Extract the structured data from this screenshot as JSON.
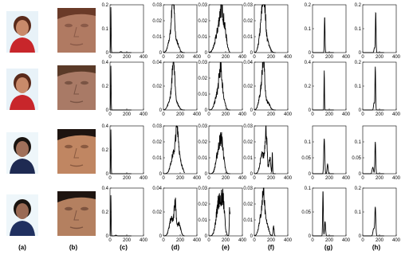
{
  "column_labels": [
    "(a)",
    "(b)",
    "(c)",
    "(d)",
    "(e)",
    "(f)",
    "(g)",
    "(h)"
  ],
  "colors": {
    "line": "#000000",
    "axis": "#000000",
    "background": "#ffffff"
  },
  "rows": [
    {
      "photo": {
        "skin": "#c98a6a",
        "hair": "#5a2a1a",
        "shirt": "#c8262b",
        "bg": "#e8f2f8"
      },
      "crop": {
        "skin": "#b07a62",
        "hair": "#6a3a28",
        "shadow": "#8a5a48"
      }
    },
    {
      "photo": {
        "skin": "#c98a6a",
        "hair": "#5a2a1a",
        "shirt": "#c8262b",
        "bg": "#e8f2f8"
      },
      "crop": {
        "skin": "#a97a66",
        "hair": "#5a3a28",
        "shadow": "#7a5444"
      }
    },
    {
      "photo": {
        "skin": "#a0705a",
        "hair": "#1a1410",
        "shirt": "#1e2a52",
        "bg": "#eef6fa"
      },
      "crop": {
        "skin": "#c08662",
        "hair": "#1e1410",
        "shadow": "#8a5a40"
      }
    },
    {
      "photo": {
        "skin": "#9a6a54",
        "hair": "#1a1410",
        "shirt": "#203060",
        "bg": "#eef6fa"
      },
      "crop": {
        "skin": "#b48060",
        "hair": "#1e1410",
        "shadow": "#7e5440"
      }
    }
  ],
  "chart_data": {
    "type": "line",
    "layout": "grid of histograms, 4 rows x 6 columns (c)-(h)",
    "xlim": [
      0,
      400
    ],
    "xticks": [
      0,
      200,
      400
    ],
    "grid": false,
    "charts": [
      {
        "row": 0,
        "col": "(c)",
        "ylim": [
          0,
          0.2
        ],
        "yticks": [
          0,
          0.1,
          0.2
        ],
        "yticklabels": [
          "0",
          "0.1",
          "0.2"
        ],
        "peaks": [
          [
            10,
            0.19,
            3
          ],
          [
            130,
            0.004,
            10
          ]
        ],
        "noise": 0
      },
      {
        "row": 0,
        "col": "(d)",
        "ylim": [
          0,
          0.03
        ],
        "yticks": [
          0,
          0.01,
          0.02,
          0.03
        ],
        "yticklabels": [
          "0",
          "0.01",
          "0.02",
          "0.03"
        ],
        "peaks": [
          [
            115,
            0.028,
            14
          ],
          [
            95,
            0.012,
            30
          ],
          [
            160,
            0.006,
            25
          ]
        ],
        "noise": 0.35
      },
      {
        "row": 0,
        "col": "(e)",
        "ylim": [
          0,
          0.03
        ],
        "yticks": [
          0,
          0.01,
          0.02,
          0.03
        ],
        "yticklabels": [
          "0",
          "0.01",
          "0.02",
          "0.03"
        ],
        "peaks": [
          [
            155,
            0.022,
            25
          ],
          [
            110,
            0.012,
            35
          ],
          [
            200,
            0.008,
            20
          ]
        ],
        "noise": 0.45
      },
      {
        "row": 0,
        "col": "(f)",
        "ylim": [
          0,
          0.03
        ],
        "yticks": [
          0,
          0.01,
          0.02,
          0.03
        ],
        "yticklabels": [
          "0",
          "0.01",
          "0.02",
          "0.03"
        ],
        "peaks": [
          [
            115,
            0.029,
            18
          ],
          [
            85,
            0.016,
            25
          ],
          [
            160,
            0.006,
            25
          ]
        ],
        "noise": 0.4
      },
      {
        "row": 0,
        "col": "(g)",
        "ylim": [
          0,
          0.2
        ],
        "yticks": [
          0,
          0.1,
          0.2
        ],
        "yticklabels": [
          "0",
          "0.1",
          "0.2"
        ],
        "peaks": [
          [
            145,
            0.15,
            4
          ]
        ],
        "noise": 0
      },
      {
        "row": 0,
        "col": "(h)",
        "ylim": [
          0,
          0.2
        ],
        "yticks": [
          0,
          0.1,
          0.2
        ],
        "yticklabels": [
          "0",
          "0.1",
          "0.2"
        ],
        "peaks": [
          [
            155,
            0.17,
            4
          ],
          [
            140,
            0.02,
            6
          ]
        ],
        "noise": 0
      },
      {
        "row": 1,
        "col": "(c)",
        "ylim": [
          0,
          0.4
        ],
        "yticks": [
          0,
          0.2,
          0.4
        ],
        "yticklabels": [
          "0",
          "0.2",
          "0.4"
        ],
        "peaks": [
          [
            10,
            0.37,
            3
          ]
        ],
        "noise": 0
      },
      {
        "row": 1,
        "col": "(d)",
        "ylim": [
          0,
          0.04
        ],
        "yticks": [
          0,
          0.02,
          0.04
        ],
        "yticklabels": [
          "0",
          "0.02",
          "0.04"
        ],
        "peaks": [
          [
            120,
            0.034,
            14
          ],
          [
            95,
            0.012,
            30
          ],
          [
            160,
            0.005,
            25
          ]
        ],
        "noise": 0.35
      },
      {
        "row": 1,
        "col": "(e)",
        "ylim": [
          0,
          0.03
        ],
        "yticks": [
          0,
          0.01,
          0.02,
          0.03
        ],
        "yticklabels": [
          "0",
          "0.01",
          "0.02",
          "0.03"
        ],
        "peaks": [
          [
            140,
            0.02,
            18
          ],
          [
            105,
            0.01,
            30
          ],
          [
            175,
            0.006,
            20
          ]
        ],
        "noise": 0.45
      },
      {
        "row": 1,
        "col": "(f)",
        "ylim": [
          0,
          0.04
        ],
        "yticks": [
          0,
          0.02,
          0.04
        ],
        "yticklabels": [
          "0",
          "0.02",
          "0.04"
        ],
        "peaks": [
          [
            110,
            0.036,
            16
          ],
          [
            80,
            0.014,
            25
          ],
          [
            160,
            0.006,
            25
          ]
        ],
        "noise": 0.4
      },
      {
        "row": 1,
        "col": "(g)",
        "ylim": [
          0,
          0.4
        ],
        "yticks": [
          0,
          0.2,
          0.4
        ],
        "yticklabels": [
          "0",
          "0.2",
          "0.4"
        ],
        "peaks": [
          [
            140,
            0.33,
            3
          ]
        ],
        "noise": 0
      },
      {
        "row": 1,
        "col": "(h)",
        "ylim": [
          0,
          0.2
        ],
        "yticks": [
          0,
          0.1,
          0.2
        ],
        "yticklabels": [
          "0",
          "0.1",
          "0.2"
        ],
        "peaks": [
          [
            150,
            0.18,
            4
          ],
          [
            135,
            0.03,
            6
          ]
        ],
        "noise": 0
      },
      {
        "row": 2,
        "col": "(c)",
        "ylim": [
          0,
          0.4
        ],
        "yticks": [
          0,
          0.2,
          0.4
        ],
        "yticklabels": [
          "0",
          "0.2",
          "0.4"
        ],
        "peaks": [
          [
            10,
            0.37,
            3
          ]
        ],
        "noise": 0
      },
      {
        "row": 2,
        "col": "(d)",
        "ylim": [
          0,
          0.03
        ],
        "yticks": [
          0,
          0.01,
          0.02,
          0.03
        ],
        "yticklabels": [
          "0",
          "0.01",
          "0.02",
          "0.03"
        ],
        "peaks": [
          [
            165,
            0.026,
            18
          ],
          [
            120,
            0.012,
            30
          ],
          [
            210,
            0.006,
            20
          ]
        ],
        "noise": 0.35
      },
      {
        "row": 2,
        "col": "(e)",
        "ylim": [
          0,
          0.03
        ],
        "yticks": [
          0,
          0.01,
          0.02,
          0.03
        ],
        "yticklabels": [
          "0",
          "0.01",
          "0.02",
          "0.03"
        ],
        "peaks": [
          [
            150,
            0.02,
            25
          ],
          [
            105,
            0.01,
            25
          ],
          [
            285,
            0.022,
            2
          ]
        ],
        "noise": 0.45
      },
      {
        "row": 2,
        "col": "(f)",
        "ylim": [
          0,
          0.03
        ],
        "yticks": [
          0,
          0.01,
          0.02,
          0.03
        ],
        "yticklabels": [
          "0",
          "0.01",
          "0.02",
          "0.03"
        ],
        "peaks": [
          [
            140,
            0.026,
            12
          ],
          [
            95,
            0.012,
            25
          ],
          [
            185,
            0.01,
            10
          ],
          [
            215,
            0.014,
            3
          ]
        ],
        "noise": 0.4
      },
      {
        "row": 2,
        "col": "(g)",
        "ylim": [
          0,
          0.15
        ],
        "yticks": [
          0,
          0.05,
          0.1
        ],
        "yticklabels": [
          "0",
          "0.05",
          "0.1"
        ],
        "peaks": [
          [
            140,
            0.11,
            6
          ],
          [
            180,
            0.03,
            6
          ]
        ],
        "noise": 0
      },
      {
        "row": 2,
        "col": "(h)",
        "ylim": [
          0,
          0.15
        ],
        "yticks": [
          0,
          0.05,
          0.1
        ],
        "yticklabels": [
          "0",
          "0.05",
          "0.1"
        ],
        "peaks": [
          [
            150,
            0.1,
            5
          ],
          [
            120,
            0.02,
            8
          ]
        ],
        "noise": 0
      },
      {
        "row": 3,
        "col": "(c)",
        "ylim": [
          0,
          0.4
        ],
        "yticks": [
          0,
          0.2,
          0.4
        ],
        "yticklabels": [
          "0",
          "0.2",
          "0.4"
        ],
        "peaks": [
          [
            10,
            0.34,
            3
          ],
          [
            70,
            0.006,
            10
          ]
        ],
        "noise": 0
      },
      {
        "row": 3,
        "col": "(d)",
        "ylim": [
          0,
          0.04
        ],
        "yticks": [
          0,
          0.02,
          0.04
        ],
        "yticklabels": [
          "0",
          "0.02",
          "0.04"
        ],
        "peaks": [
          [
            140,
            0.026,
            12
          ],
          [
            95,
            0.014,
            25
          ],
          [
            185,
            0.01,
            20
          ]
        ],
        "noise": 0.4
      },
      {
        "row": 3,
        "col": "(e)",
        "ylim": [
          0,
          0.03
        ],
        "yticks": [
          0,
          0.01,
          0.02,
          0.03
        ],
        "yticklabels": [
          "0",
          "0.01",
          "0.02",
          "0.03"
        ],
        "peaks": [
          [
            120,
            0.022,
            30
          ],
          [
            170,
            0.018,
            18
          ],
          [
            250,
            0.02,
            5
          ]
        ],
        "noise": 0.5
      },
      {
        "row": 3,
        "col": "(f)",
        "ylim": [
          0,
          0.03
        ],
        "yticks": [
          0,
          0.01,
          0.02,
          0.03
        ],
        "yticklabels": [
          "0",
          "0.01",
          "0.02",
          "0.03"
        ],
        "peaks": [
          [
            110,
            0.022,
            14
          ],
          [
            80,
            0.012,
            25
          ],
          [
            150,
            0.008,
            20
          ],
          [
            230,
            0.006,
            6
          ]
        ],
        "noise": 0.4
      },
      {
        "row": 3,
        "col": "(g)",
        "ylim": [
          0,
          0.1
        ],
        "yticks": [
          0,
          0.05,
          0.1
        ],
        "yticklabels": [
          "0",
          "0.05",
          "0.1"
        ],
        "peaks": [
          [
            125,
            0.095,
            4
          ],
          [
            150,
            0.03,
            6
          ]
        ],
        "noise": 0
      },
      {
        "row": 3,
        "col": "(h)",
        "ylim": [
          0,
          0.2
        ],
        "yticks": [
          0,
          0.1,
          0.2
        ],
        "yticklabels": [
          "0",
          "0.1",
          "0.2"
        ],
        "peaks": [
          [
            150,
            0.12,
            6
          ],
          [
            130,
            0.03,
            8
          ]
        ],
        "noise": 0
      }
    ]
  }
}
